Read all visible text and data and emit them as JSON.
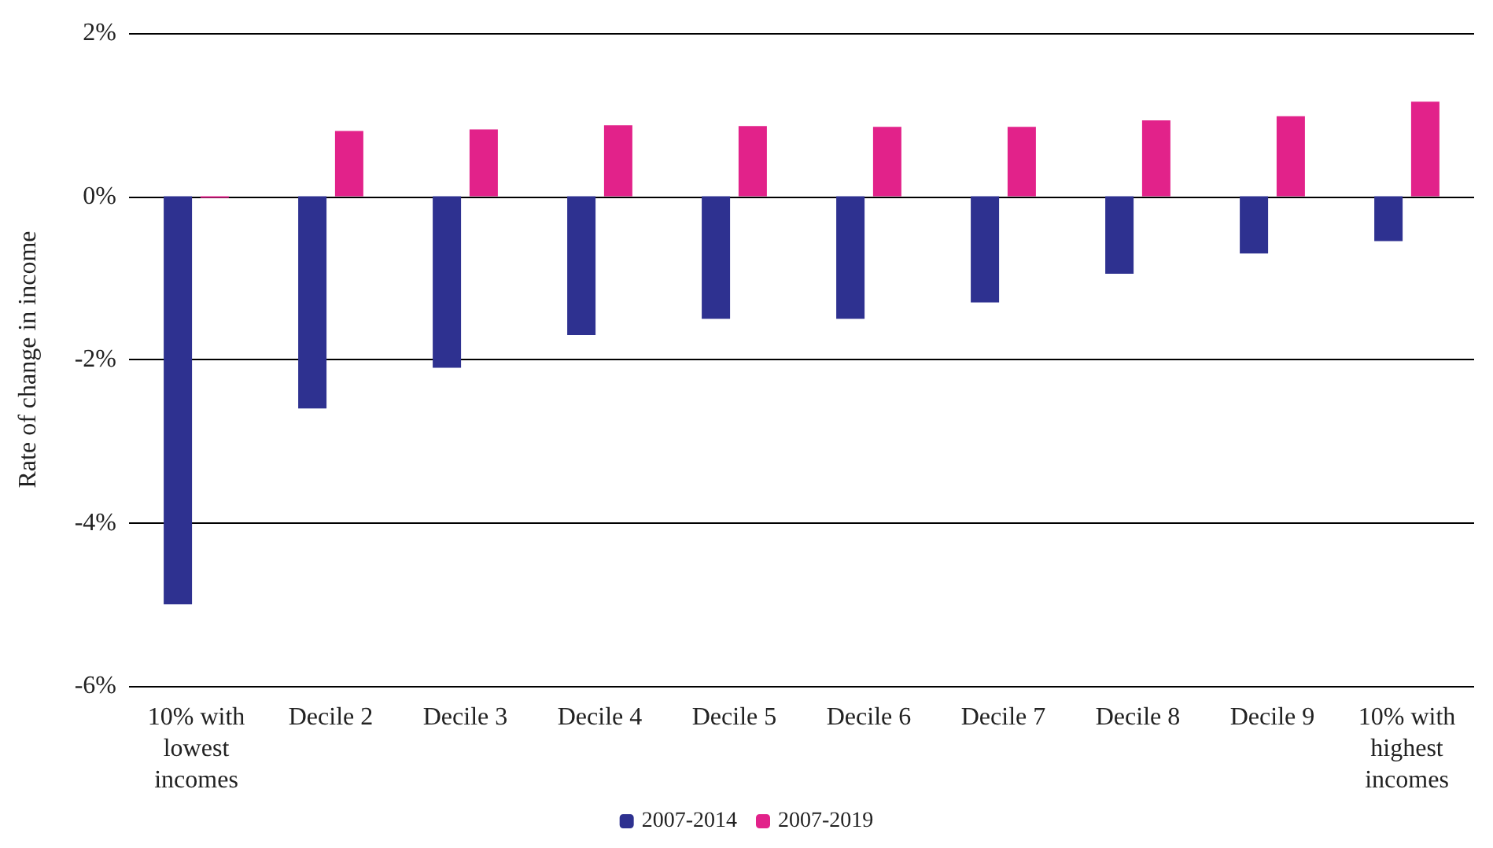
{
  "chart_data": {
    "type": "bar",
    "ylabel": "Rate of change in income",
    "categories": [
      "10% with\nlowest\nincomes",
      "Decile 2",
      "Decile 3",
      "Decile 4",
      "Decile 5",
      "Decile 6",
      "Decile 7",
      "Decile 8",
      "Decile 9",
      "10% with\nhighest\nincomes"
    ],
    "series": [
      {
        "name": "2007-2014",
        "color": "#2e3190",
        "values": [
          -5.0,
          -2.6,
          -2.1,
          -1.7,
          -1.5,
          -1.5,
          -1.3,
          -0.95,
          -0.7,
          -0.55
        ]
      },
      {
        "name": "2007-2019",
        "color": "#e2228a",
        "values": [
          -0.02,
          0.8,
          0.82,
          0.87,
          0.86,
          0.85,
          0.85,
          0.93,
          0.98,
          1.16
        ]
      }
    ],
    "ylim": [
      -6,
      2
    ],
    "yticks": [
      {
        "value": -6,
        "label": "-6%"
      },
      {
        "value": -4,
        "label": "-4%"
      },
      {
        "value": -2,
        "label": "-2%"
      },
      {
        "value": 0,
        "label": "0%"
      },
      {
        "value": 2,
        "label": "2%"
      }
    ],
    "grid": "y",
    "legend": "bottom"
  }
}
